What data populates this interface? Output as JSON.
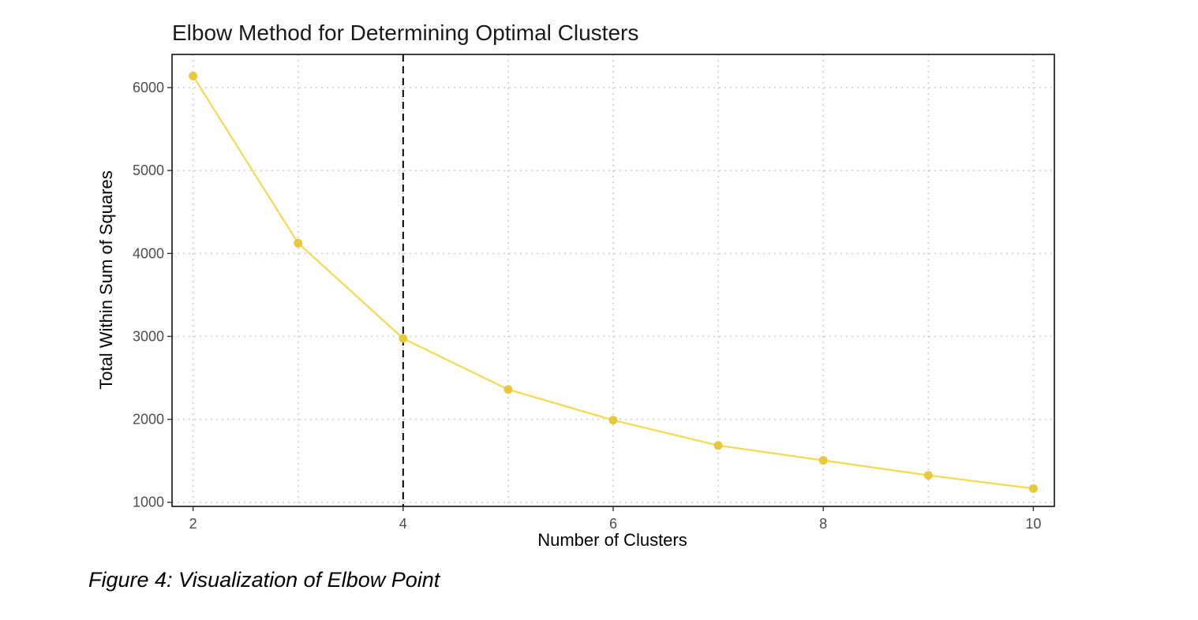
{
  "chart_data": {
    "type": "line",
    "title": "Elbow Method for Determining Optimal Clusters",
    "xlabel": "Number of Clusters",
    "ylabel": "Total Within Sum of Squares",
    "x": [
      2,
      3,
      4,
      5,
      6,
      7,
      8,
      9,
      10
    ],
    "series": [
      {
        "values": [
          6140,
          4125,
          2975,
          2360,
          1990,
          1685,
          1505,
          1325,
          1165
        ]
      }
    ],
    "xlim": [
      1.8,
      10.2
    ],
    "ylim": [
      950,
      6400
    ],
    "xticks": [
      2,
      4,
      6,
      8,
      10
    ],
    "yticks": [
      1000,
      2000,
      3000,
      4000,
      5000,
      6000
    ],
    "grid": true,
    "grid_style": "dotted",
    "legend": "none",
    "reference_line": {
      "axis": "x",
      "value": 4,
      "style": "dashed",
      "color": "#000000"
    },
    "colors": {
      "line": "#f5d94e",
      "point": "#e8c93e",
      "grid": "#cfcfcf",
      "frame": "#000000"
    }
  },
  "caption": "Figure 4: Visualization of Elbow Point"
}
